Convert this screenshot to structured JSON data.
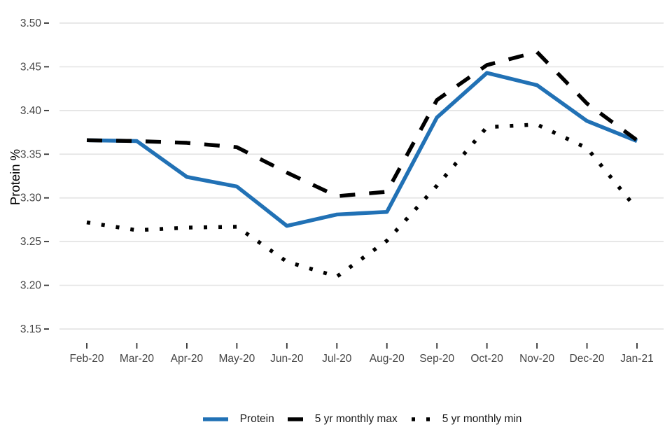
{
  "chart_data": {
    "type": "line",
    "title": "",
    "xlabel": "",
    "ylabel": "Protein %",
    "ylim": [
      3.15,
      3.5
    ],
    "yticks": [
      "3.15",
      "3.20",
      "3.25",
      "3.30",
      "3.35",
      "3.40",
      "3.45",
      "3.50"
    ],
    "grid": "horizontal",
    "legend_position": "bottom",
    "categories": [
      "Feb-20",
      "Mar-20",
      "Apr-20",
      "May-20",
      "Jun-20",
      "Jul-20",
      "Aug-20",
      "Sep-20",
      "Oct-20",
      "Nov-20",
      "Dec-20",
      "Jan-21"
    ],
    "series": [
      {
        "name": "Protein",
        "style": "solid",
        "color": "#2171b5",
        "values": [
          3.366,
          3.365,
          3.324,
          3.313,
          3.268,
          3.281,
          3.284,
          3.392,
          3.443,
          3.429,
          3.388,
          3.365
        ]
      },
      {
        "name": "5 yr monthly max",
        "style": "dashed",
        "color": "#000000",
        "values": [
          3.366,
          3.365,
          3.363,
          3.358,
          3.329,
          3.302,
          3.307,
          3.412,
          3.452,
          3.467,
          3.408,
          3.366
        ]
      },
      {
        "name": "5 yr monthly min",
        "style": "dotted",
        "color": "#000000",
        "values": [
          3.272,
          3.263,
          3.266,
          3.267,
          3.227,
          3.21,
          3.251,
          3.314,
          3.381,
          3.384,
          3.357,
          3.287
        ]
      }
    ]
  },
  "colors": {
    "background": "#ffffff",
    "gridline": "#e4e4e4",
    "tick_mark": "#333333",
    "tick_label": "#444444",
    "axis_title": "#000000",
    "legend_text": "#1a1a1a"
  }
}
